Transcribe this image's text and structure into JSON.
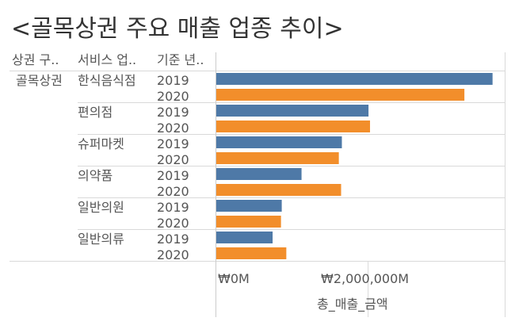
{
  "title": "<골목상권 주요 매출 업종 추이>",
  "headers": {
    "col1": "상권 구..",
    "col2": "서비스 업..",
    "col3": "기준 년.."
  },
  "district": "골목상권",
  "categories": [
    "한식음식점",
    "편의점",
    "슈퍼마켓",
    "의약품",
    "일반의원",
    "일반의류"
  ],
  "years": [
    "2019",
    "2020"
  ],
  "colors": {
    "y2019": "#4e79a7",
    "y2020": "#f28e2b",
    "grid": "#d9d9d9",
    "axis": "#cccccc"
  },
  "axis": {
    "ticks": [
      "₩0M",
      "₩2,000,000M"
    ],
    "title": "총_매출_금액"
  },
  "chart_data": {
    "type": "bar",
    "orientation": "horizontal",
    "title": "<골목상권 주요 매출 업종 추이>",
    "xlabel": "총_매출_금액",
    "xlim": [
      0,
      3800000
    ],
    "categories": [
      "한식음식점",
      "편의점",
      "슈퍼마켓",
      "의약품",
      "일반의원",
      "일반의류"
    ],
    "series": [
      {
        "name": "2019",
        "values": [
          3630000,
          2000000,
          1650000,
          1120000,
          860000,
          740000
        ]
      },
      {
        "name": "2020",
        "values": [
          3260000,
          2020000,
          1610000,
          1640000,
          850000,
          920000
        ]
      }
    ],
    "xticks": [
      0,
      2000000
    ],
    "xtick_labels": [
      "₩0M",
      "₩2,000,000M"
    ],
    "grid": true
  }
}
